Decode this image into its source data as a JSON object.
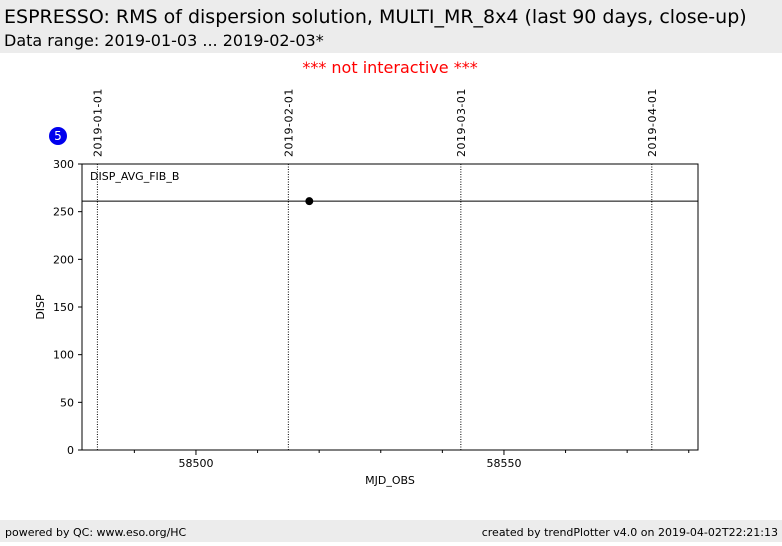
{
  "chart_data": {
    "type": "scatter",
    "title": "ESPRESSO: RMS of dispersion solution, MULTI_MR_8x4 (last 90 days, close-up)",
    "subtitle": "Data range: 2019-01-03 ... 2019-02-03*",
    "notice": "*** not interactive ***",
    "badge": "5",
    "series_label": "DISP_AVG_FIB_B",
    "xlabel": "MJD_OBS",
    "ylabel": "DISP",
    "x": [
      58518.4
    ],
    "values": [
      261
    ],
    "color": "#000000",
    "reference_line": 261,
    "date_lines": [
      {
        "value": 58484,
        "label": "2019-01-01"
      },
      {
        "value": 58515,
        "label": "2019-02-01"
      },
      {
        "value": 58543,
        "label": "2019-03-01"
      },
      {
        "value": 58574,
        "label": "2019-04-01"
      }
    ],
    "xlim": [
      58481.5,
      58581.5
    ],
    "ylim": [
      0,
      300
    ],
    "xticks": [
      58500,
      58550
    ],
    "xminorticks": [
      58490,
      58510,
      58520,
      58530,
      58540,
      58560,
      58570,
      58580
    ],
    "yticks": [
      0,
      50,
      100,
      150,
      200,
      250,
      300
    ],
    "footer_left": "powered by QC: www.eso.org/HC",
    "footer_right": "created by trendPlotter v4.0 on 2019-04-02T22:21:13"
  }
}
